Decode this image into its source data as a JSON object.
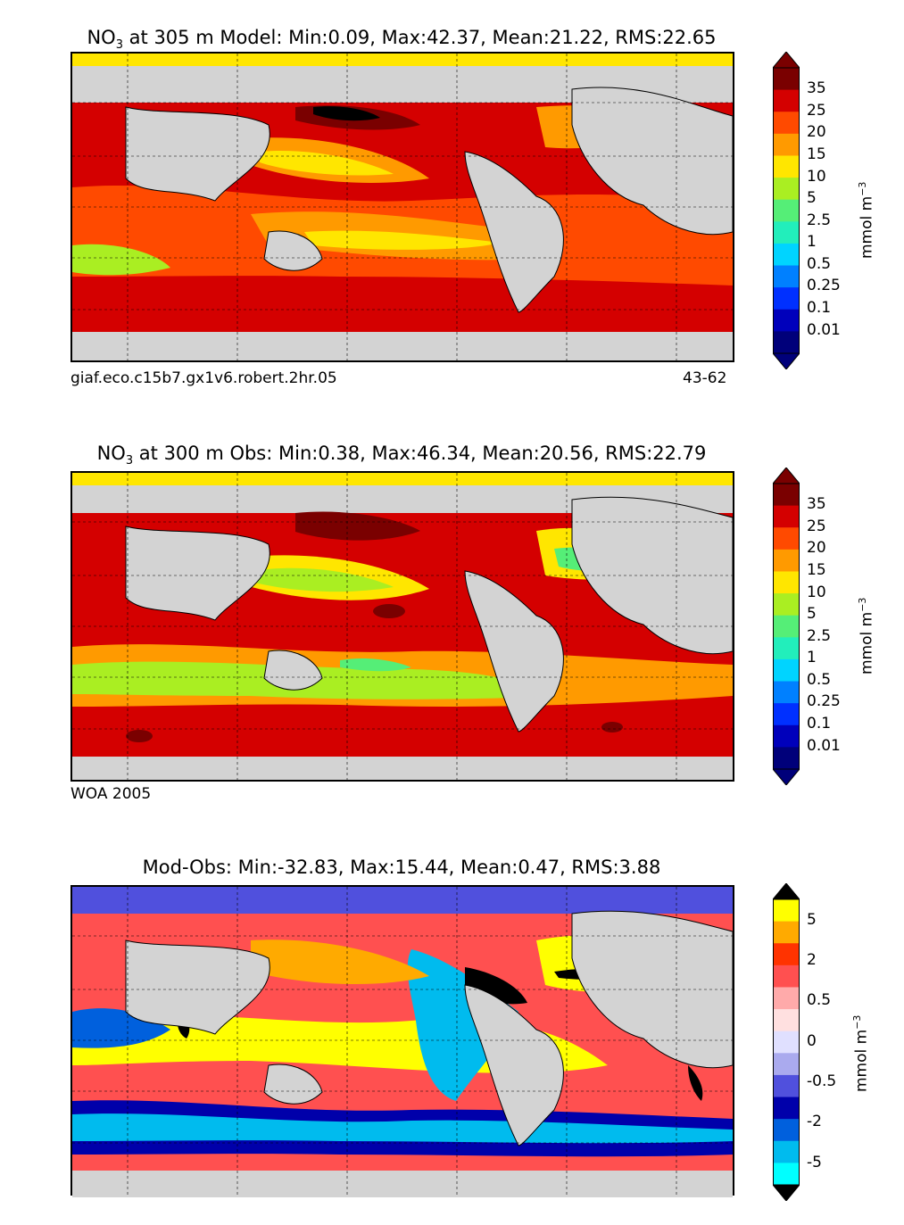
{
  "panels": [
    {
      "title": {
        "prefix": "NO",
        "sub": "3",
        "text": " at 305 m Model: Min:0.09, Max:42.37, Mean:21.22, RMS:22.65"
      },
      "caption_left": "giaf.eco.c15b7.gx1v6.robert.2hr.05",
      "caption_right": "43-62",
      "colorbar": {
        "ticks": [
          "35",
          "25",
          "20",
          "15",
          "10",
          "5",
          "2.5",
          "1",
          "0.5",
          "0.25",
          "0.1",
          "0.01"
        ],
        "unit": {
          "base": "mmol m",
          "sup": "−3"
        },
        "colors": [
          "#7a0000",
          "#d40000",
          "#ff4a00",
          "#ff9a00",
          "#ffe600",
          "#aaee22",
          "#55ee77",
          "#22eebb",
          "#00d4ff",
          "#0080ff",
          "#0030ff",
          "#0000bb",
          "#00007a"
        ]
      }
    },
    {
      "title": {
        "prefix": "NO",
        "sub": "3",
        "text": " at 300 m Obs: Min:0.38, Max:46.34, Mean:20.56, RMS:22.79"
      },
      "caption_left": "WOA 2005",
      "caption_right": "",
      "colorbar": {
        "ticks": [
          "35",
          "25",
          "20",
          "15",
          "10",
          "5",
          "2.5",
          "1",
          "0.5",
          "0.25",
          "0.1",
          "0.01"
        ],
        "unit": {
          "base": "mmol m",
          "sup": "−3"
        },
        "colors": [
          "#7a0000",
          "#d40000",
          "#ff4a00",
          "#ff9a00",
          "#ffe600",
          "#aaee22",
          "#55ee77",
          "#22eebb",
          "#00d4ff",
          "#0080ff",
          "#0030ff",
          "#0000bb",
          "#00007a"
        ]
      }
    },
    {
      "title": {
        "prefix": "",
        "sub": "",
        "text": "Mod-Obs: Min:-32.83, Max:15.44, Mean:0.47, RMS:3.88"
      },
      "caption_left": "",
      "caption_right": "",
      "colorbar": {
        "ticks": [
          "5",
          "2",
          "0.5",
          "0",
          "-0.5",
          "-2",
          "-5"
        ],
        "unit": {
          "base": "mmol m",
          "sup": "−3"
        },
        "colors": [
          "#ffff00",
          "#ffaa00",
          "#ff3300",
          "#ff5050",
          "#ffaaaa",
          "#ffe0e0",
          "#e0e0ff",
          "#aaaaee",
          "#5050dd",
          "#0000aa",
          "#0060dd",
          "#00bbee",
          "#00ffff"
        ]
      }
    }
  ]
}
